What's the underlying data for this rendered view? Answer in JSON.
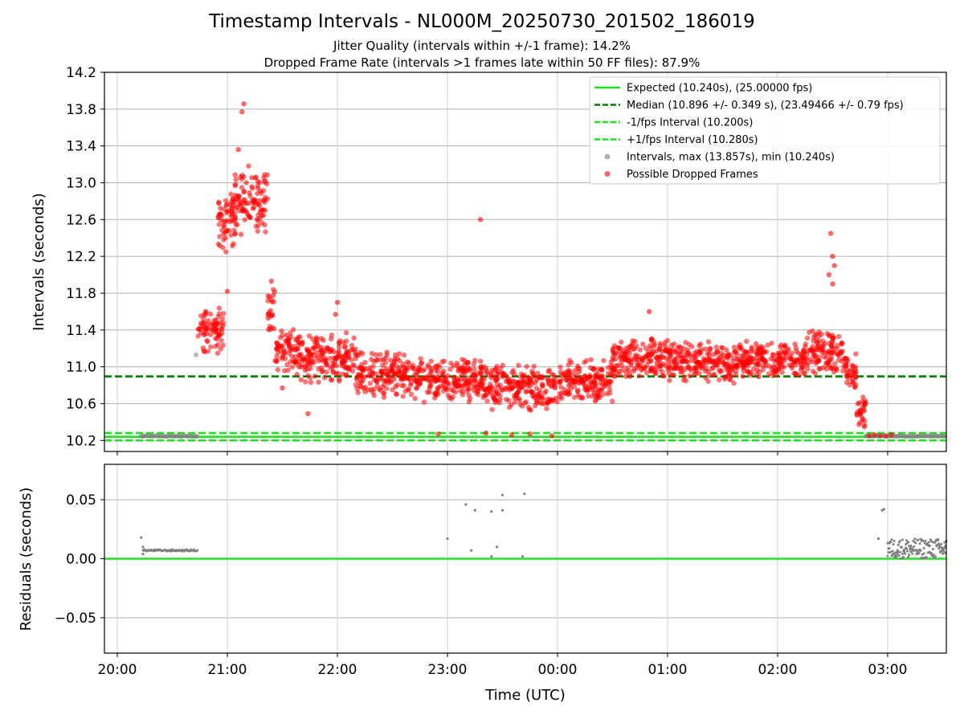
{
  "title": "Timestamp Intervals - NL000M_20250730_201502_186019",
  "subtitle1": "Jitter Quality (intervals within +/-1 frame): 14.2%",
  "subtitle2": "Dropped Frame Rate (intervals >1 frames late within 50 FF files): 87.9%",
  "colors": {
    "expected": "#22e022",
    "median": "#008000",
    "interval_gray": "#808080",
    "dropped_red": "#ff0000",
    "residual_line": "#22e022"
  },
  "chart_data": [
    {
      "type": "scatter",
      "ylabel": "Intervals (seconds)",
      "ylim": [
        10.08,
        14.2
      ],
      "yticks": [
        "10.2",
        "10.6",
        "11.0",
        "11.4",
        "11.8",
        "12.2",
        "12.6",
        "13.0",
        "13.4",
        "13.8",
        "14.2"
      ],
      "xlim_minutes": [
        -7,
        452
      ],
      "x_unit": "minutes after 20:00 UTC",
      "grid": true,
      "legend_position": "top-right",
      "legend": [
        {
          "label": "Expected (10.240s), (25.00000 fps)",
          "style": "solid",
          "color": "#22e022"
        },
        {
          "label": "Median (10.896 +/- 0.349 s), (23.49466 +/- 0.79 fps)",
          "style": "dashed",
          "color": "#008000"
        },
        {
          "label": "-1/fps Interval (10.200s)",
          "style": "dashed",
          "color": "#22e022"
        },
        {
          "label": "+1/fps Interval (10.280s)",
          "style": "dashed",
          "color": "#22e022"
        },
        {
          "label": "Intervals, max (13.857s), min (10.240s)",
          "style": "marker",
          "color": "#808080"
        },
        {
          "label": "Possible Dropped Frames",
          "style": "marker",
          "color": "#ff0000"
        }
      ],
      "hlines": [
        {
          "y": 10.24,
          "style": "solid",
          "color": "#22e022"
        },
        {
          "y": 10.896,
          "style": "dashed",
          "color": "#008000"
        },
        {
          "y": 10.2,
          "style": "dashed",
          "color": "#22e022"
        },
        {
          "y": 10.28,
          "style": "dashed",
          "color": "#22e022"
        }
      ],
      "normal_segments": [
        {
          "x_start": 13,
          "x_end": 44,
          "y": 10.247
        },
        {
          "x_start": 408,
          "x_end": 452,
          "y": 10.248
        }
      ],
      "dropped_segments": [
        {
          "x_start": 44,
          "x_end": 58,
          "y_low": 11.1,
          "y_high": 11.7
        },
        {
          "x_start": 55,
          "x_end": 65,
          "y_low": 12.2,
          "y_high": 13.0
        },
        {
          "x_start": 62,
          "x_end": 82,
          "y_low": 12.4,
          "y_high": 13.2
        },
        {
          "x_start": 82,
          "x_end": 86,
          "y_low": 11.3,
          "y_high": 11.9
        },
        {
          "x_start": 86,
          "x_end": 100,
          "y_low": 10.9,
          "y_high": 11.45
        },
        {
          "x_start": 100,
          "x_end": 130,
          "y_low": 10.8,
          "y_high": 11.4
        },
        {
          "x_start": 130,
          "x_end": 160,
          "y_low": 10.65,
          "y_high": 11.2
        },
        {
          "x_start": 160,
          "x_end": 200,
          "y_low": 10.6,
          "y_high": 11.1
        },
        {
          "x_start": 200,
          "x_end": 240,
          "y_low": 10.5,
          "y_high": 11.05
        },
        {
          "x_start": 240,
          "x_end": 270,
          "y_low": 10.6,
          "y_high": 11.1
        },
        {
          "x_start": 270,
          "x_end": 300,
          "y_low": 10.85,
          "y_high": 11.35
        },
        {
          "x_start": 300,
          "x_end": 340,
          "y_low": 10.8,
          "y_high": 11.3
        },
        {
          "x_start": 340,
          "x_end": 375,
          "y_low": 10.85,
          "y_high": 11.3
        },
        {
          "x_start": 375,
          "x_end": 389,
          "y_low": 10.9,
          "y_high": 11.4
        },
        {
          "x_start": 389,
          "x_end": 396,
          "y_low": 10.9,
          "y_high": 11.4
        },
        {
          "x_start": 396,
          "x_end": 403,
          "y_low": 10.75,
          "y_high": 11.2
        },
        {
          "x_start": 403,
          "x_end": 408,
          "y_low": 10.3,
          "y_high": 10.7
        }
      ],
      "dropped_points": [
        {
          "x": 69,
          "y": 13.857
        },
        {
          "x": 68,
          "y": 13.77
        },
        {
          "x": 66,
          "y": 13.36
        },
        {
          "x": 198,
          "y": 12.6
        },
        {
          "x": 389,
          "y": 12.45
        },
        {
          "x": 390,
          "y": 12.2
        },
        {
          "x": 391,
          "y": 12.1
        },
        {
          "x": 390,
          "y": 11.9
        },
        {
          "x": 388,
          "y": 12.0
        },
        {
          "x": 60,
          "y": 11.82
        },
        {
          "x": 84,
          "y": 11.93
        },
        {
          "x": 120,
          "y": 11.7
        },
        {
          "x": 119,
          "y": 11.57
        },
        {
          "x": 290,
          "y": 11.6
        },
        {
          "x": 90,
          "y": 10.77
        },
        {
          "x": 104,
          "y": 10.49
        },
        {
          "x": 175,
          "y": 10.27
        },
        {
          "x": 201,
          "y": 10.28
        },
        {
          "x": 215,
          "y": 10.26
        },
        {
          "x": 237,
          "y": 10.25
        },
        {
          "x": 225,
          "y": 10.27
        },
        {
          "x": 410,
          "y": 10.25
        },
        {
          "x": 413,
          "y": 10.26
        },
        {
          "x": 416,
          "y": 10.25
        },
        {
          "x": 419,
          "y": 10.25
        },
        {
          "x": 422,
          "y": 10.26
        }
      ],
      "gray_points": [
        {
          "x": 43,
          "y": 11.13
        }
      ]
    },
    {
      "type": "scatter",
      "ylabel": "Residuals (seconds)",
      "xlabel": "Time (UTC)",
      "ylim": [
        -0.08,
        0.08
      ],
      "yticks": [
        "−0.05",
        "0.00",
        "0.05"
      ],
      "xticks": [
        "20:00",
        "21:00",
        "22:00",
        "23:00",
        "00:00",
        "01:00",
        "02:00",
        "03:00"
      ],
      "xlim_minutes": [
        -7,
        452
      ],
      "grid": true,
      "zero_line": {
        "y": 0.0,
        "color": "#22e022"
      },
      "residual_segments": [
        {
          "x_start": 14,
          "x_end": 44,
          "y": 0.007
        },
        {
          "x_start": 420,
          "x_end": 452,
          "y_low": 0.0,
          "y_high": 0.017
        }
      ],
      "residual_points": [
        {
          "x": 13,
          "y": 0.018
        },
        {
          "x": 14,
          "y": 0.004
        },
        {
          "x": 14,
          "y": 0.01
        },
        {
          "x": 180,
          "y": 0.017
        },
        {
          "x": 190,
          "y": 0.046
        },
        {
          "x": 195,
          "y": 0.041
        },
        {
          "x": 193,
          "y": 0.007
        },
        {
          "x": 204,
          "y": 0.04
        },
        {
          "x": 204,
          "y": 0.002
        },
        {
          "x": 207,
          "y": 0.01
        },
        {
          "x": 210,
          "y": 0.054
        },
        {
          "x": 210,
          "y": 0.041
        },
        {
          "x": 222,
          "y": 0.055
        },
        {
          "x": 221,
          "y": 0.002
        },
        {
          "x": 415,
          "y": 0.017
        },
        {
          "x": 417,
          "y": 0.041
        },
        {
          "x": 418,
          "y": 0.042
        }
      ]
    }
  ]
}
